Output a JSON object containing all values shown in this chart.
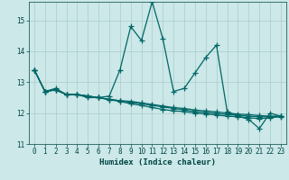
{
  "xlabel": "Humidex (Indice chaleur)",
  "bg_color": "#cce8e8",
  "line_color": "#006666",
  "grid_color": "#aacccc",
  "xlim": [
    -0.5,
    23.5
  ],
  "ylim": [
    11,
    15.6
  ],
  "yticks": [
    11,
    12,
    13,
    14,
    15
  ],
  "xticks": [
    0,
    1,
    2,
    3,
    4,
    5,
    6,
    7,
    8,
    9,
    10,
    11,
    12,
    13,
    14,
    15,
    16,
    17,
    18,
    19,
    20,
    21,
    22,
    23
  ],
  "series": [
    {
      "x": [
        0,
        1,
        2,
        3,
        4,
        5,
        6,
        7,
        8,
        9,
        10,
        11,
        12,
        13,
        14,
        15,
        16,
        17,
        18,
        19,
        20,
        21,
        22,
        23
      ],
      "y": [
        13.4,
        12.7,
        12.8,
        12.6,
        12.6,
        12.5,
        12.5,
        12.55,
        13.4,
        14.8,
        14.35,
        15.6,
        14.4,
        12.7,
        12.8,
        13.3,
        13.8,
        14.2,
        12.05,
        11.9,
        11.8,
        11.5,
        12.0,
        11.9
      ]
    },
    {
      "x": [
        0,
        1,
        2,
        3,
        4,
        5,
        6,
        7,
        8,
        9,
        10,
        11,
        12,
        13,
        14,
        15,
        16,
        17,
        18,
        19,
        20,
        21,
        22,
        23
      ],
      "y": [
        13.4,
        12.7,
        12.75,
        12.6,
        12.6,
        12.55,
        12.5,
        12.45,
        12.4,
        12.38,
        12.33,
        12.28,
        12.23,
        12.18,
        12.15,
        12.1,
        12.07,
        12.04,
        12.0,
        11.97,
        11.95,
        11.92,
        11.9,
        11.9
      ]
    },
    {
      "x": [
        0,
        1,
        2,
        3,
        4,
        5,
        6,
        7,
        8,
        9,
        10,
        11,
        12,
        13,
        14,
        15,
        16,
        17,
        18,
        19,
        20,
        21,
        22,
        23
      ],
      "y": [
        13.4,
        12.7,
        12.75,
        12.6,
        12.6,
        12.55,
        12.5,
        12.44,
        12.4,
        12.35,
        12.3,
        12.25,
        12.2,
        12.15,
        12.1,
        12.05,
        12.02,
        11.99,
        11.95,
        11.93,
        11.9,
        11.88,
        11.88,
        11.9
      ]
    },
    {
      "x": [
        0,
        1,
        2,
        3,
        4,
        5,
        6,
        7,
        8,
        9,
        10,
        11,
        12,
        13,
        14,
        15,
        16,
        17,
        18,
        19,
        20,
        21,
        22,
        23
      ],
      "y": [
        13.4,
        12.7,
        12.75,
        12.6,
        12.6,
        12.55,
        12.5,
        12.43,
        12.38,
        12.3,
        12.25,
        12.18,
        12.12,
        12.07,
        12.05,
        12.0,
        11.97,
        11.94,
        11.9,
        11.88,
        11.85,
        11.82,
        11.85,
        11.88
      ]
    }
  ],
  "marker": "+",
  "markersize": 4,
  "markeredgewidth": 0.9,
  "linewidth": 0.9,
  "font_color": "#004444",
  "tick_fontsize": 5.5,
  "xlabel_fontsize": 6.5
}
